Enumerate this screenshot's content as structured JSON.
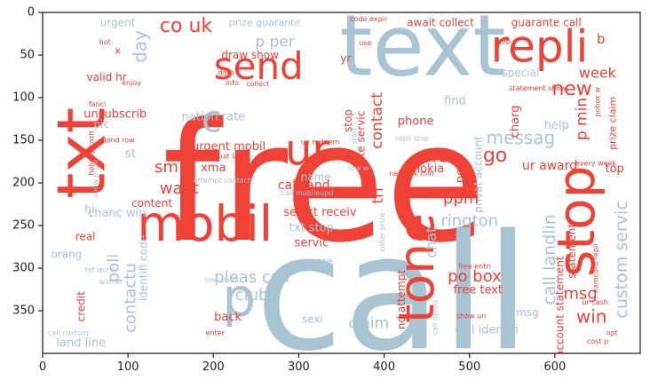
{
  "chart_data": {
    "type": "wordcloud",
    "title": "",
    "xlabel": "",
    "ylabel": "",
    "xlim": [
      0,
      700
    ],
    "ylim": [
      400,
      0
    ],
    "xticks": [
      0,
      100,
      200,
      300,
      400,
      500,
      600
    ],
    "yticks": [
      0,
      50,
      100,
      150,
      200,
      250,
      300,
      350
    ],
    "grid": false,
    "colors": {
      "red": "#ef4136",
      "blue": "#a8c4d3",
      "axis": "#222222",
      "background": "#ffffff"
    },
    "words": [
      {
        "text": "free",
        "color": "red",
        "x": 330,
        "y": 200,
        "size": 185,
        "rotate": 0
      },
      {
        "text": "call",
        "color": "blue",
        "x": 410,
        "y": 330,
        "size": 180,
        "rotate": 0
      },
      {
        "text": "text",
        "color": "blue",
        "x": 445,
        "y": 40,
        "size": 95,
        "rotate": 0
      },
      {
        "text": "repli",
        "color": "red",
        "x": 582,
        "y": 40,
        "size": 50,
        "rotate": 0
      },
      {
        "text": "txt",
        "color": "red",
        "x": 45,
        "y": 165,
        "size": 75,
        "rotate": -90
      },
      {
        "text": "mobil",
        "color": "red",
        "x": 190,
        "y": 248,
        "size": 55,
        "rotate": 0
      },
      {
        "text": "send",
        "color": "red",
        "x": 253,
        "y": 63,
        "size": 42,
        "rotate": 0
      },
      {
        "text": "ur",
        "color": "red",
        "x": 310,
        "y": 162,
        "size": 48,
        "rotate": 0
      },
      {
        "text": "stop",
        "color": "red",
        "x": 625,
        "y": 245,
        "size": 58,
        "rotate": -90
      },
      {
        "text": "tone",
        "color": "red",
        "x": 438,
        "y": 300,
        "size": 55,
        "rotate": -90
      },
      {
        "text": "p",
        "color": "blue",
        "x": 230,
        "y": 335,
        "size": 60,
        "rotate": 0
      },
      {
        "text": "c",
        "color": "blue",
        "x": 198,
        "y": 125,
        "size": 42,
        "rotate": 0
      },
      {
        "text": "co uk",
        "color": "red",
        "x": 168,
        "y": 16,
        "size": 22,
        "rotate": 0
      },
      {
        "text": "day",
        "color": "blue",
        "x": 114,
        "y": 40,
        "size": 20,
        "rotate": -90
      },
      {
        "text": "p per",
        "color": "blue",
        "x": 272,
        "y": 35,
        "size": 17,
        "rotate": 0
      },
      {
        "text": "urgent",
        "color": "blue",
        "x": 88,
        "y": 12,
        "size": 12,
        "rotate": 0
      },
      {
        "text": "prize guarante",
        "color": "blue",
        "x": 260,
        "y": 12,
        "size": 11,
        "rotate": 0
      },
      {
        "text": "code expir",
        "color": "red",
        "x": 382,
        "y": 8,
        "size": 8,
        "rotate": 0
      },
      {
        "text": "await collect",
        "color": "red",
        "x": 466,
        "y": 12,
        "size": 12,
        "rotate": 0
      },
      {
        "text": "guarante call",
        "color": "red",
        "x": 590,
        "y": 12,
        "size": 12,
        "rotate": 0
      },
      {
        "text": "b",
        "color": "red",
        "x": 654,
        "y": 31,
        "size": 15,
        "rotate": 0
      },
      {
        "text": "hot",
        "color": "red",
        "x": 73,
        "y": 35,
        "size": 8,
        "rotate": 0
      },
      {
        "text": "x",
        "color": "red",
        "x": 88,
        "y": 45,
        "size": 11,
        "rotate": 0
      },
      {
        "text": "use",
        "color": "red",
        "x": 378,
        "y": 36,
        "size": 8,
        "rotate": 0
      },
      {
        "text": "gbp",
        "color": "red",
        "x": 540,
        "y": 34,
        "size": 8,
        "rotate": 0
      },
      {
        "text": "draw show",
        "color": "red",
        "x": 243,
        "y": 50,
        "size": 12,
        "rotate": 0
      },
      {
        "text": "yr",
        "color": "red",
        "x": 355,
        "y": 54,
        "size": 12,
        "rotate": 0
      },
      {
        "text": "valid hr",
        "color": "red",
        "x": 75,
        "y": 76,
        "size": 12,
        "rotate": 0
      },
      {
        "text": "enjoy",
        "color": "red",
        "x": 104,
        "y": 83,
        "size": 8,
        "rotate": 0
      },
      {
        "text": "date",
        "color": "red",
        "x": 215,
        "y": 71,
        "size": 8,
        "rotate": 0
      },
      {
        "text": "info",
        "color": "red",
        "x": 222,
        "y": 83,
        "size": 8,
        "rotate": 0
      },
      {
        "text": "collect",
        "color": "red",
        "x": 252,
        "y": 84,
        "size": 8,
        "rotate": 0
      },
      {
        "text": "special",
        "color": "blue",
        "x": 560,
        "y": 71,
        "size": 12,
        "rotate": 0
      },
      {
        "text": "week",
        "color": "red",
        "x": 650,
        "y": 71,
        "size": 16,
        "rotate": 0
      },
      {
        "text": "new",
        "color": "red",
        "x": 620,
        "y": 90,
        "size": 22,
        "rotate": 0
      },
      {
        "text": "statement show",
        "color": "red",
        "x": 580,
        "y": 89,
        "size": 8,
        "rotate": 0
      },
      {
        "text": "find",
        "color": "blue",
        "x": 483,
        "y": 104,
        "size": 13,
        "rotate": 0
      },
      {
        "text": "p min",
        "color": "red",
        "x": 632,
        "y": 125,
        "size": 17,
        "rotate": -90
      },
      {
        "text": "fanci",
        "color": "red",
        "x": 64,
        "y": 108,
        "size": 8,
        "rotate": 0
      },
      {
        "text": "unsubscrib",
        "color": "red",
        "x": 85,
        "y": 120,
        "size": 13,
        "rotate": 0
      },
      {
        "text": "pic",
        "color": "blue",
        "x": 69,
        "y": 131,
        "size": 12,
        "rotate": 0
      },
      {
        "text": "nation rate",
        "color": "blue",
        "x": 200,
        "y": 123,
        "size": 13,
        "rotate": 0
      },
      {
        "text": "stop",
        "color": "red",
        "x": 358,
        "y": 127,
        "size": 12,
        "rotate": -90
      },
      {
        "text": "contact",
        "color": "red",
        "x": 392,
        "y": 127,
        "size": 17,
        "rotate": -90
      },
      {
        "text": "phone",
        "color": "red",
        "x": 437,
        "y": 128,
        "size": 13,
        "rotate": 0
      },
      {
        "text": "messag",
        "color": "blue",
        "x": 560,
        "y": 147,
        "size": 20,
        "rotate": 0
      },
      {
        "text": "charg",
        "color": "red",
        "x": 554,
        "y": 128,
        "size": 13,
        "rotate": -90
      },
      {
        "text": "help",
        "color": "blue",
        "x": 602,
        "y": 133,
        "size": 13,
        "rotate": 0
      },
      {
        "text": "prize claim",
        "color": "red",
        "x": 668,
        "y": 130,
        "size": 11,
        "rotate": -90
      },
      {
        "text": "pobox w",
        "color": "red",
        "x": 650,
        "y": 105,
        "size": 8,
        "rotate": -90
      },
      {
        "text": "holiday cash",
        "color": "red",
        "x": 57,
        "y": 165,
        "size": 8,
        "rotate": -90
      },
      {
        "text": "land row",
        "color": "red",
        "x": 90,
        "y": 150,
        "size": 8,
        "rotate": 0
      },
      {
        "text": "st",
        "color": "blue",
        "x": 103,
        "y": 166,
        "size": 14,
        "rotate": 0
      },
      {
        "text": "un redeem",
        "color": "red",
        "x": 325,
        "y": 152,
        "size": 8,
        "rotate": 0
      },
      {
        "text": "repli stop",
        "color": "blue",
        "x": 433,
        "y": 148,
        "size": 8,
        "rotate": 0
      },
      {
        "text": "start",
        "color": "blue",
        "x": 365,
        "y": 145,
        "size": 8,
        "rotate": -90
      },
      {
        "text": "date servic",
        "color": "red",
        "x": 373,
        "y": 150,
        "size": 12,
        "rotate": -90
      },
      {
        "text": "tri",
        "color": "red",
        "x": 393,
        "y": 215,
        "size": 17,
        "rotate": -90
      },
      {
        "text": "urgent mobil",
        "color": "red",
        "x": 218,
        "y": 158,
        "size": 13,
        "rotate": 0
      },
      {
        "text": "suit land",
        "color": "red",
        "x": 222,
        "y": 169,
        "size": 8,
        "rotate": 0
      },
      {
        "text": "offer",
        "color": "red",
        "x": 460,
        "y": 168,
        "size": 20,
        "rotate": 0
      },
      {
        "text": "go",
        "color": "red",
        "x": 530,
        "y": 168,
        "size": 22,
        "rotate": 0
      },
      {
        "text": "sm",
        "color": "red",
        "x": 145,
        "y": 182,
        "size": 18,
        "rotate": 0
      },
      {
        "text": "xma",
        "color": "red",
        "x": 200,
        "y": 183,
        "size": 13,
        "rotate": 0
      },
      {
        "text": "nokia",
        "color": "red",
        "x": 452,
        "y": 184,
        "size": 13,
        "rotate": 0
      },
      {
        "text": "ur award",
        "color": "red",
        "x": 594,
        "y": 180,
        "size": 14,
        "rotate": 0
      },
      {
        "text": "next",
        "color": "red",
        "x": 490,
        "y": 185,
        "size": 13,
        "rotate": -90
      },
      {
        "text": "every week",
        "color": "red",
        "x": 648,
        "y": 177,
        "size": 8,
        "rotate": 0
      },
      {
        "text": "top",
        "color": "red",
        "x": 670,
        "y": 184,
        "size": 13,
        "rotate": 0
      },
      {
        "text": "show prize",
        "color": "blue",
        "x": 62,
        "y": 195,
        "size": 8,
        "rotate": -90
      },
      {
        "text": "row w",
        "color": "blue",
        "x": 370,
        "y": 183,
        "size": 8,
        "rotate": 0
      },
      {
        "text": "name",
        "color": "blue",
        "x": 320,
        "y": 193,
        "size": 12,
        "rotate": 0
      },
      {
        "text": "network min",
        "color": "red",
        "x": 432,
        "y": 189,
        "size": 8,
        "rotate": 0
      },
      {
        "text": "privat account",
        "color": "blue",
        "x": 510,
        "y": 190,
        "size": 12,
        "rotate": -90
      },
      {
        "text": "call mobileupd",
        "color": "blue",
        "x": 310,
        "y": 212,
        "size": 8,
        "rotate": 0
      },
      {
        "text": "attempt contact",
        "color": "blue",
        "x": 210,
        "y": 197,
        "size": 8,
        "rotate": 0
      },
      {
        "text": "want",
        "color": "red",
        "x": 160,
        "y": 207,
        "size": 18,
        "rotate": 0
      },
      {
        "text": "call land",
        "color": "red",
        "x": 306,
        "y": 203,
        "size": 14,
        "rotate": 0
      },
      {
        "text": "ppm",
        "color": "red",
        "x": 490,
        "y": 218,
        "size": 18,
        "rotate": 0
      },
      {
        "text": "custom servic",
        "color": "blue",
        "x": 678,
        "y": 290,
        "size": 19,
        "rotate": -90
      },
      {
        "text": "content",
        "color": "red",
        "x": 128,
        "y": 224,
        "size": 12,
        "rotate": 0
      },
      {
        "text": "hi",
        "color": "blue",
        "x": 55,
        "y": 232,
        "size": 13,
        "rotate": 0
      },
      {
        "text": "chanc win",
        "color": "blue",
        "x": 87,
        "y": 236,
        "size": 13,
        "rotate": 0
      },
      {
        "text": "select receiv",
        "color": "red",
        "x": 325,
        "y": 235,
        "size": 13,
        "rotate": 0
      },
      {
        "text": "rington",
        "color": "blue",
        "x": 500,
        "y": 245,
        "size": 18,
        "rotate": 0
      },
      {
        "text": "txt stop",
        "color": "blue",
        "x": 315,
        "y": 253,
        "size": 13,
        "rotate": 0
      },
      {
        "text": "caller prize",
        "color": "blue",
        "x": 398,
        "y": 258,
        "size": 8,
        "rotate": -90
      },
      {
        "text": "real",
        "color": "red",
        "x": 50,
        "y": 263,
        "size": 12,
        "rotate": 0
      },
      {
        "text": "servic",
        "color": "red",
        "x": 315,
        "y": 271,
        "size": 13,
        "rotate": 0
      },
      {
        "text": "chat",
        "color": "blue",
        "x": 455,
        "y": 270,
        "size": 16,
        "rotate": -90
      },
      {
        "text": "call landlin",
        "color": "blue",
        "x": 594,
        "y": 290,
        "size": 19,
        "rotate": -90
      },
      {
        "text": "statement",
        "color": "red",
        "x": 620,
        "y": 280,
        "size": 12,
        "rotate": -90
      },
      {
        "text": "camcord repli",
        "color": "red",
        "x": 648,
        "y": 300,
        "size": 8,
        "rotate": -90
      },
      {
        "text": "orang",
        "color": "blue",
        "x": 28,
        "y": 284,
        "size": 12,
        "rotate": 0
      },
      {
        "text": "identifi code",
        "color": "blue",
        "x": 118,
        "y": 300,
        "size": 12,
        "rotate": -90
      },
      {
        "text": "poli",
        "color": "blue",
        "x": 83,
        "y": 300,
        "size": 18,
        "rotate": -90
      },
      {
        "text": "game",
        "color": "blue",
        "x": 322,
        "y": 292,
        "size": 12,
        "rotate": 0
      },
      {
        "text": "free entri",
        "color": "red",
        "x": 506,
        "y": 298,
        "size": 8,
        "rotate": 0
      },
      {
        "text": "po box",
        "color": "red",
        "x": 506,
        "y": 310,
        "size": 18,
        "rotate": 0
      },
      {
        "text": "txt word",
        "color": "blue",
        "x": 67,
        "y": 302,
        "size": 8,
        "rotate": 0
      },
      {
        "text": "pleas call",
        "color": "blue",
        "x": 245,
        "y": 311,
        "size": 18,
        "rotate": 0
      },
      {
        "text": "contactu",
        "color": "blue",
        "x": 103,
        "y": 335,
        "size": 18,
        "rotate": -90
      },
      {
        "text": "line claim",
        "color": "blue",
        "x": 210,
        "y": 314,
        "size": 8,
        "rotate": 0
      },
      {
        "text": "winner",
        "color": "blue",
        "x": 80,
        "y": 316,
        "size": 8,
        "rotate": 0
      },
      {
        "text": "club",
        "color": "blue",
        "x": 245,
        "y": 332,
        "size": 18,
        "rotate": 0
      },
      {
        "text": "free text",
        "color": "red",
        "x": 510,
        "y": 326,
        "size": 13,
        "rotate": 0
      },
      {
        "text": "msg",
        "color": "red",
        "x": 630,
        "y": 330,
        "size": 18,
        "rotate": 0
      },
      {
        "text": "credit",
        "color": "red",
        "x": 45,
        "y": 345,
        "size": 12,
        "rotate": -90
      },
      {
        "text": "nd attempt",
        "color": "red",
        "x": 420,
        "y": 337,
        "size": 12,
        "rotate": -90
      },
      {
        "text": "account statement",
        "color": "red",
        "x": 606,
        "y": 345,
        "size": 12,
        "rotate": -90
      },
      {
        "text": "p msg",
        "color": "blue",
        "x": 562,
        "y": 352,
        "size": 12,
        "rotate": 0
      },
      {
        "text": "claim",
        "color": "blue",
        "x": 382,
        "y": 365,
        "size": 17,
        "rotate": 0
      },
      {
        "text": "sexi",
        "color": "blue",
        "x": 316,
        "y": 360,
        "size": 12,
        "rotate": 0
      },
      {
        "text": "back",
        "color": "red",
        "x": 217,
        "y": 358,
        "size": 13,
        "rotate": 0
      },
      {
        "text": "win",
        "color": "red",
        "x": 643,
        "y": 357,
        "size": 20,
        "rotate": 0
      },
      {
        "text": "show un",
        "color": "red",
        "x": 502,
        "y": 356,
        "size": 8,
        "rotate": 0
      },
      {
        "text": "call optou",
        "color": "blue",
        "x": 460,
        "y": 358,
        "size": 8,
        "rotate": -90
      },
      {
        "text": "ur cash",
        "color": "red",
        "x": 647,
        "y": 340,
        "size": 8,
        "rotate": 0
      },
      {
        "text": "enter",
        "color": "red",
        "x": 202,
        "y": 376,
        "size": 8,
        "rotate": 0
      },
      {
        "text": "call identifi",
        "color": "blue",
        "x": 520,
        "y": 373,
        "size": 13,
        "rotate": 0
      },
      {
        "text": "call custom",
        "color": "blue",
        "x": 30,
        "y": 376,
        "size": 8,
        "rotate": 0
      },
      {
        "text": "opt",
        "color": "red",
        "x": 667,
        "y": 376,
        "size": 8,
        "rotate": 0
      },
      {
        "text": "land line",
        "color": "blue",
        "x": 45,
        "y": 388,
        "size": 13,
        "rotate": 0
      },
      {
        "text": "cost p",
        "color": "red",
        "x": 650,
        "y": 386,
        "size": 8,
        "rotate": 0
      }
    ]
  }
}
